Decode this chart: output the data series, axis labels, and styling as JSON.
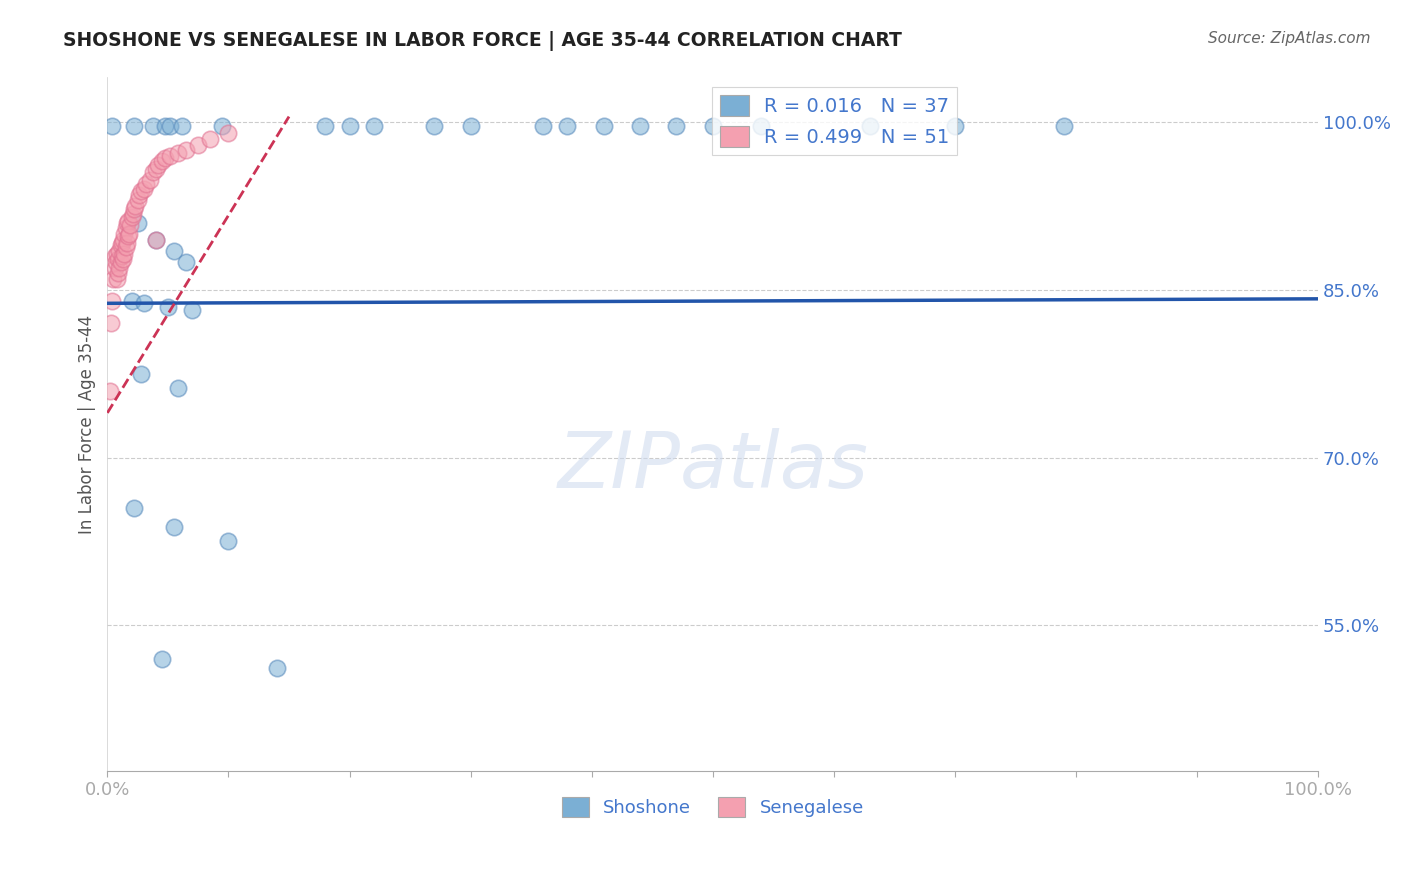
{
  "title": "SHOSHONE VS SENEGALESE IN LABOR FORCE | AGE 35-44 CORRELATION CHART",
  "source_text": "Source: ZipAtlas.com",
  "ylabel": "In Labor Force | Age 35-44",
  "shoshone_R": 0.016,
  "shoshone_N": 37,
  "senegalese_R": 0.499,
  "senegalese_N": 51,
  "blue_color": "#7BAFD4",
  "blue_edge_color": "#5588BB",
  "blue_line_color": "#2255AA",
  "pink_color": "#F4A0B0",
  "pink_edge_color": "#E07090",
  "pink_line_color": "#CC3355",
  "background_color": "#ffffff",
  "grid_color": "#cccccc",
  "text_color": "#4477CC",
  "title_color": "#222222",
  "xlim": [
    0.0,
    1.0
  ],
  "ylim": [
    0.42,
    1.04
  ],
  "yticks": [
    0.55,
    0.7,
    0.85,
    1.0
  ],
  "ytick_labels": [
    "55.0%",
    "70.0%",
    "85.0%",
    "100.0%"
  ],
  "xticks": [
    0.0,
    0.1,
    0.2,
    0.3,
    0.4,
    0.5,
    0.6,
    0.7,
    0.8,
    0.9,
    1.0
  ],
  "shoshone_x": [
    0.004,
    0.022,
    0.038,
    0.048,
    0.052,
    0.062,
    0.095,
    0.18,
    0.2,
    0.22,
    0.27,
    0.3,
    0.36,
    0.38,
    0.41,
    0.44,
    0.47,
    0.5,
    0.54,
    0.63,
    0.7,
    0.79,
    0.025,
    0.04,
    0.055,
    0.065,
    0.02,
    0.03,
    0.05,
    0.07,
    0.028,
    0.058,
    0.022,
    0.055,
    0.1,
    0.045,
    0.14
  ],
  "shoshone_y": [
    0.997,
    0.997,
    0.997,
    0.997,
    0.997,
    0.997,
    0.997,
    0.997,
    0.997,
    0.997,
    0.997,
    0.997,
    0.997,
    0.997,
    0.997,
    0.997,
    0.997,
    0.997,
    0.997,
    0.997,
    0.997,
    0.997,
    0.91,
    0.895,
    0.885,
    0.875,
    0.84,
    0.838,
    0.835,
    0.832,
    0.775,
    0.762,
    0.655,
    0.638,
    0.625,
    0.52,
    0.512
  ],
  "senegalese_x": [
    0.002,
    0.003,
    0.004,
    0.005,
    0.006,
    0.006,
    0.007,
    0.008,
    0.008,
    0.009,
    0.009,
    0.01,
    0.01,
    0.011,
    0.011,
    0.012,
    0.012,
    0.013,
    0.013,
    0.014,
    0.014,
    0.015,
    0.015,
    0.016,
    0.016,
    0.017,
    0.017,
    0.018,
    0.019,
    0.02,
    0.021,
    0.022,
    0.023,
    0.025,
    0.026,
    0.028,
    0.03,
    0.032,
    0.035,
    0.038,
    0.04,
    0.042,
    0.045,
    0.048,
    0.052,
    0.058,
    0.065,
    0.075,
    0.085,
    0.1,
    0.04
  ],
  "senegalese_y": [
    0.76,
    0.82,
    0.84,
    0.86,
    0.88,
    0.87,
    0.875,
    0.86,
    0.882,
    0.865,
    0.878,
    0.87,
    0.885,
    0.875,
    0.89,
    0.88,
    0.892,
    0.878,
    0.895,
    0.882,
    0.9,
    0.888,
    0.905,
    0.892,
    0.91,
    0.898,
    0.912,
    0.9,
    0.908,
    0.915,
    0.918,
    0.922,
    0.925,
    0.93,
    0.935,
    0.938,
    0.94,
    0.945,
    0.948,
    0.955,
    0.958,
    0.962,
    0.965,
    0.968,
    0.97,
    0.972,
    0.975,
    0.98,
    0.985,
    0.99,
    0.895
  ],
  "blue_trend_x": [
    0.0,
    1.0
  ],
  "blue_trend_y": [
    0.838,
    0.842
  ],
  "pink_trend_x": [
    0.0,
    0.15
  ],
  "pink_trend_y": [
    0.74,
    1.005
  ]
}
